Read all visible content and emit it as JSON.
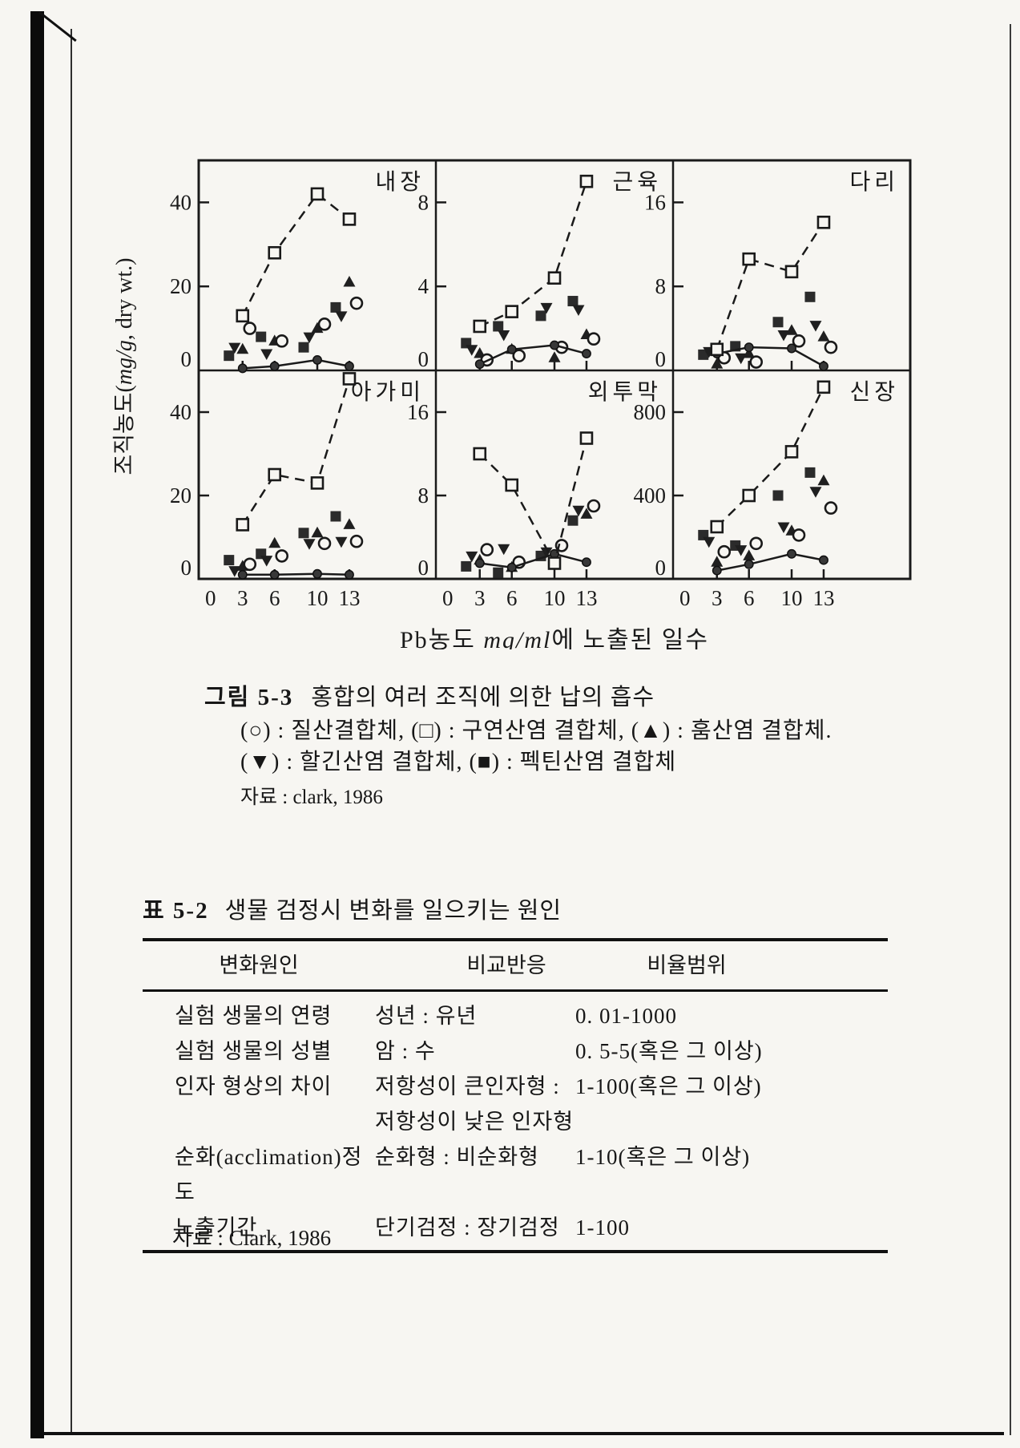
{
  "colors": {
    "ink": "#1a1a1a",
    "paper": "#f7f6f2"
  },
  "figure": {
    "caption_label": "그림 5-3",
    "caption_text": "홍합의 여러 조직에 의한 납의 흡수",
    "legend_line1": "(○) : 질산결합체, (□) : 구연산염 결합체, (▲) : 훔산염 결합체.",
    "legend_line2": "(▼) : 할긴산염 결합체, (■) : 펙틴산염 결합체",
    "source": "자료 : clark, 1986"
  },
  "chart_data": {
    "type": "line",
    "x": [
      3,
      6,
      10,
      13
    ],
    "xticks": [
      0,
      3,
      6,
      10,
      13
    ],
    "xlabel_parts": [
      "Pb농도 ",
      "mg/ml",
      "에 노출된 일수"
    ],
    "ylabel_parts": [
      "조직농도(",
      "mg/g",
      ", dry wt.)"
    ],
    "legend_position": "below-figure",
    "grid": false,
    "series_meta": [
      {
        "key": "citrate",
        "label": "구연산염 결합체",
        "marker": "open-square-icon",
        "line": "dashed"
      },
      {
        "key": "nitrate",
        "label": "질산결합체",
        "marker": "open-circle-icon",
        "line": "none"
      },
      {
        "key": "humate",
        "label": "훔산염 결합체",
        "marker": "filled-triangle-up-icon",
        "line": "none"
      },
      {
        "key": "alginate",
        "label": "할긴산염 결합체",
        "marker": "filled-triangle-down-icon",
        "line": "none"
      },
      {
        "key": "pectate",
        "label": "펙틴산염 결합체",
        "marker": "filled-square-icon",
        "line": "none"
      },
      {
        "key": "control",
        "label": "",
        "marker": "filled-circle-icon",
        "line": "solid"
      }
    ],
    "panels": [
      {
        "key": "viscera",
        "title": "내장",
        "yticks": [
          0,
          20,
          40
        ],
        "ymax": 50,
        "series": {
          "citrate": [
            13,
            28,
            42,
            36
          ],
          "nitrate": [
            10,
            7,
            11,
            16
          ],
          "humate": [
            5,
            7,
            10,
            21
          ],
          "alginate": [
            5.5,
            4,
            8,
            13
          ],
          "pectate": [
            3.5,
            8,
            5.5,
            15
          ],
          "control": [
            0.5,
            1,
            2.5,
            1
          ]
        }
      },
      {
        "key": "muscle",
        "title": "근육",
        "yticks": [
          0,
          4,
          8
        ],
        "ymax": 10,
        "series": {
          "citrate": [
            2.1,
            2.8,
            4.4,
            9.0
          ],
          "nitrate": [
            0.5,
            0.7,
            1.1,
            1.5
          ],
          "humate": [
            0.8,
            1.0,
            0.6,
            1.7
          ],
          "alginate": [
            1.0,
            1.7,
            3.0,
            2.9
          ],
          "pectate": [
            1.3,
            2.1,
            2.6,
            3.3
          ],
          "control": [
            0.3,
            1.0,
            1.2,
            0.8
          ]
        }
      },
      {
        "key": "leg",
        "title": "다리",
        "yticks": [
          0,
          8,
          16
        ],
        "ymax": 20,
        "series": {
          "citrate": [
            2,
            10.6,
            9.4,
            14.1
          ],
          "nitrate": [
            1.2,
            0.8,
            2.8,
            2.2
          ],
          "humate": [
            0.6,
            1.6,
            3.8,
            3.2
          ],
          "alginate": [
            1.8,
            1.2,
            3.4,
            4.3
          ],
          "pectate": [
            1.5,
            2.3,
            4.6,
            7
          ],
          "control": [
            1.6,
            2.2,
            2.1,
            0.4
          ]
        }
      },
      {
        "key": "gill",
        "title": "아가미",
        "yticks": [
          0,
          20,
          40
        ],
        "ymax": 50,
        "series": {
          "citrate": [
            13,
            25,
            23,
            48
          ],
          "nitrate": [
            3.5,
            5.5,
            8.5,
            9
          ],
          "humate": [
            3,
            8.5,
            11,
            13
          ],
          "alginate": [
            2,
            4.5,
            8.5,
            9
          ],
          "pectate": [
            4.5,
            6,
            11,
            15
          ],
          "control": [
            1,
            1,
            1.2,
            1
          ]
        }
      },
      {
        "key": "mantle",
        "title": "외투막",
        "yticks": [
          0,
          8,
          16
        ],
        "ymax": 20,
        "series": {
          "citrate": [
            12,
            9,
            1.5,
            13.5
          ],
          "nitrate": [
            2.8,
            1.6,
            3.2,
            7
          ],
          "humate": [
            1.8,
            1.1,
            2.1,
            6.2
          ],
          "alginate": [
            2.2,
            2.9,
            2.6,
            6.6
          ],
          "pectate": [
            1.2,
            0.6,
            2.2,
            5.6
          ],
          "control": [
            1.5,
            1.1,
            2.4,
            1.6
          ]
        }
      },
      {
        "key": "kidney",
        "title": "신장",
        "yticks": [
          0,
          400,
          800
        ],
        "ymax": 1000,
        "series": {
          "citrate": [
            250,
            400,
            610,
            920
          ],
          "nitrate": [
            130,
            170,
            210,
            340
          ],
          "humate": [
            80,
            110,
            230,
            470
          ],
          "alginate": [
            180,
            140,
            250,
            420
          ],
          "pectate": [
            210,
            160,
            400,
            510
          ],
          "control": [
            40,
            70,
            120,
            90
          ]
        }
      }
    ]
  },
  "table": {
    "label": "표 5-2",
    "title": "생물 검정시 변화를 일으키는 원인",
    "columns": [
      "변화원인",
      "비교반응",
      "비율범위"
    ],
    "rows": [
      {
        "cause": "실험 생물의 연령",
        "comparison": [
          "성년 : 유년"
        ],
        "range": "0. 01-1000"
      },
      {
        "cause": "실험 생물의 성별",
        "comparison": [
          "암 : 수"
        ],
        "range": "0. 5-5(혹은 그 이상)"
      },
      {
        "cause": "인자 형상의 차이",
        "comparison": [
          "저항성이 큰인자형 :",
          "저항성이 낮은 인자형"
        ],
        "range": "1-100(혹은 그 이상)"
      },
      {
        "cause": "순화(acclimation)정도",
        "comparison": [
          "순화형 : 비순화형"
        ],
        "range": "1-10(혹은 그 이상)"
      },
      {
        "cause": "노출기간",
        "comparison": [
          "단기검정 : 장기검정"
        ],
        "range": "1-100"
      }
    ],
    "source": "자료 : Clark, 1986"
  }
}
